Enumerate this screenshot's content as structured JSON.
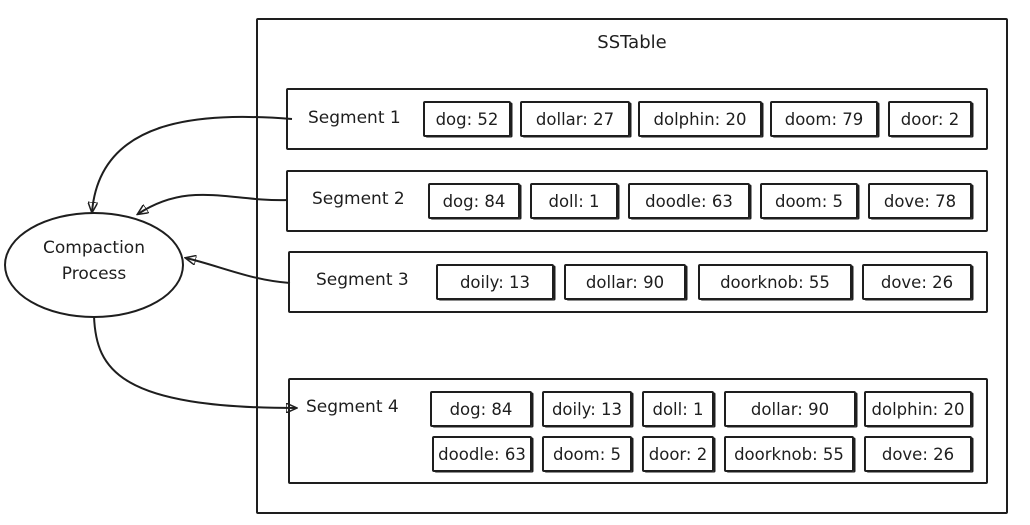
{
  "diagram": {
    "title": "SSTable",
    "process": {
      "line1": "Compaction",
      "line2": "Process"
    },
    "segments": [
      {
        "label": "Segment 1",
        "entries": [
          "dog: 52",
          "dollar: 27",
          "dolphin: 20",
          "doom: 79",
          "door: 2"
        ]
      },
      {
        "label": "Segment 2",
        "entries": [
          "dog: 84",
          "doll: 1",
          "doodle: 63",
          "doom: 5",
          "dove: 78"
        ]
      },
      {
        "label": "Segment 3",
        "entries": [
          "doily: 13",
          "dollar: 90",
          "doorknob: 55",
          "dove: 26"
        ]
      },
      {
        "label": "Segment 4",
        "entries": [
          "dog: 84",
          "doily: 13",
          "doll: 1",
          "dollar: 90",
          "dolphin: 20",
          "doodle: 63",
          "doom: 5",
          "door: 2",
          "doorknob: 55",
          "dove: 26"
        ]
      }
    ]
  }
}
